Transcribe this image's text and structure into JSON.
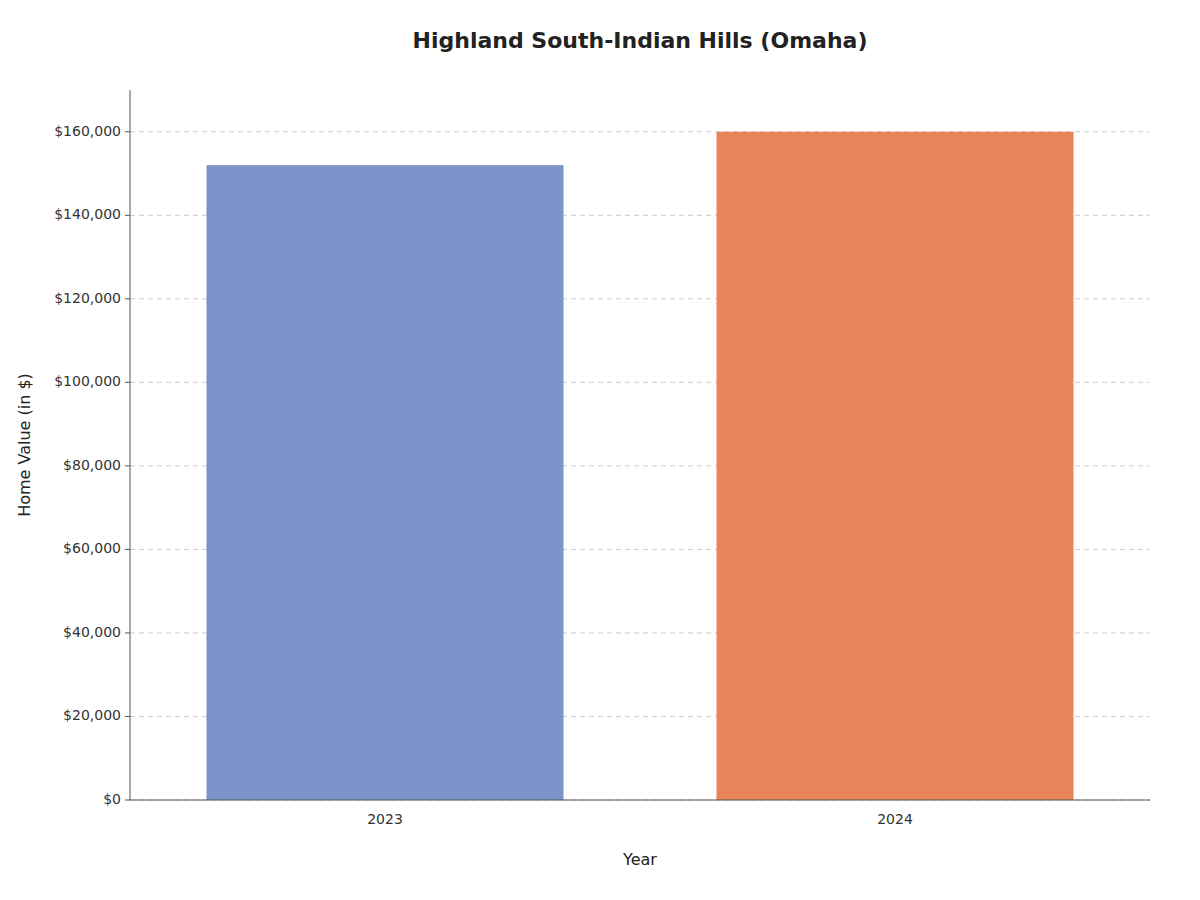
{
  "chart_data": {
    "type": "bar",
    "title": "Highland South-Indian Hills (Omaha)",
    "x_label": "Year",
    "y_label": "Home Value (in $)",
    "categories": [
      "2023",
      "2024"
    ],
    "values": [
      152000,
      160000
    ],
    "colors": [
      "#7b93c8",
      "#e8845a"
    ],
    "ylim": [
      0,
      170000
    ],
    "yticks": [
      {
        "value": 0,
        "label": "$0"
      },
      {
        "value": 20000,
        "label": "$20,000"
      },
      {
        "value": 40000,
        "label": "$40,000"
      },
      {
        "value": 60000,
        "label": "$60,000"
      },
      {
        "value": 80000,
        "label": "$80,000"
      },
      {
        "value": 100000,
        "label": "$100,000"
      },
      {
        "value": 120000,
        "label": "$120,000"
      },
      {
        "value": 140000,
        "label": "$140,000"
      },
      {
        "value": 160000,
        "label": "$160,000"
      }
    ],
    "grid": true
  }
}
